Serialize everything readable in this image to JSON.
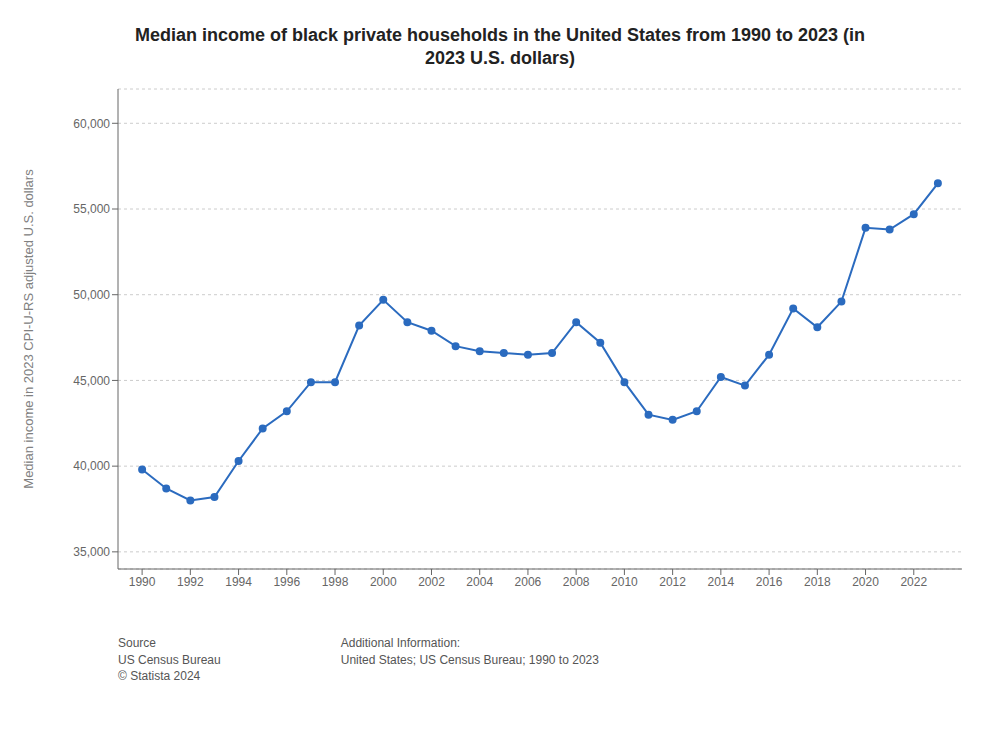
{
  "chart_data": {
    "type": "line",
    "title": "Median income of black private households in the United States from 1990 to 2023 (in\n2023 U.S. dollars)",
    "y_label": "Median income in 2023 CPI-U-RS adjusted U.S. dollars",
    "annotations": [
      "Source\nUS Census Bureau\n© Statista 2024",
      "Additional Information:\nUnited States; US Census Bureau; 1990 to 2023"
    ],
    "x": [
      1990,
      1991,
      1992,
      1993,
      1994,
      1995,
      1996,
      1997,
      1998,
      1999,
      2000,
      2001,
      2002,
      2003,
      2004,
      2005,
      2006,
      2007,
      2008,
      2009,
      2010,
      2011,
      2012,
      2013,
      2014,
      2015,
      2016,
      2017,
      2018,
      2019,
      2020,
      2021,
      2022,
      2023
    ],
    "values": [
      39800,
      38700,
      38000,
      38200,
      40300,
      42200,
      43200,
      44900,
      44900,
      48200,
      49700,
      48400,
      47900,
      47000,
      46700,
      46600,
      46500,
      46600,
      48400,
      47200,
      44900,
      43000,
      42700,
      43200,
      45200,
      44700,
      46500,
      49200,
      48100,
      49600,
      53900,
      53800,
      54700,
      56500
    ],
    "color": "#2b6bbf",
    "marker": "circle",
    "xlim": [
      1989,
      2024
    ],
    "xticks": [
      1990,
      1992,
      1994,
      1996,
      1998,
      2000,
      2002,
      2004,
      2006,
      2008,
      2010,
      2012,
      2014,
      2016,
      2018,
      2020,
      2022
    ],
    "ylim": [
      34000,
      62000
    ],
    "yticks": [
      {
        "value": 35000,
        "label": "35,000"
      },
      {
        "value": 40000,
        "label": "40,000"
      },
      {
        "value": 45000,
        "label": "45,000"
      },
      {
        "value": 50000,
        "label": "50,000"
      },
      {
        "value": 55000,
        "label": "55,000"
      },
      {
        "value": 60000,
        "label": "60,000"
      }
    ],
    "grid": "y"
  }
}
